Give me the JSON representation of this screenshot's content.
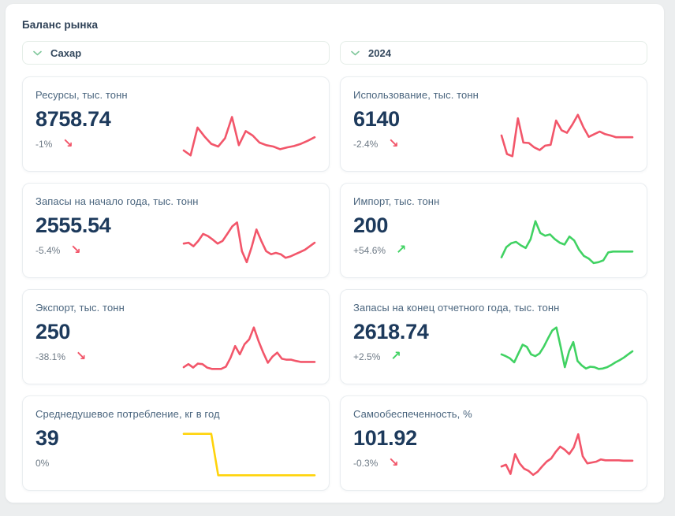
{
  "page": {
    "title": "Баланс рынка"
  },
  "filters": {
    "product": {
      "value": "Сахар"
    },
    "year": {
      "value": "2024"
    }
  },
  "colors": {
    "red": "#f2566a",
    "green": "#41d263",
    "yellow": "#ffd30a",
    "chevron": "#7fc79b",
    "value_text": "#1d3a5c"
  },
  "cards": [
    {
      "title": "Ресурсы, тыс. тонн",
      "value": "8758.74",
      "change": "-1%",
      "arrow": "↘",
      "color": "red",
      "sparkline": [
        0.16,
        0.05,
        0.68,
        0.48,
        0.31,
        0.25,
        0.44,
        0.92,
        0.28,
        0.6,
        0.5,
        0.34,
        0.28,
        0.25,
        0.19,
        0.23,
        0.26,
        0.31,
        0.38,
        0.46
      ]
    },
    {
      "title": "Использование, тыс. тонн",
      "value": "6140",
      "change": "-2.4%",
      "arrow": "↘",
      "color": "red",
      "sparkline": [
        0.5,
        0.08,
        0.03,
        0.89,
        0.34,
        0.33,
        0.23,
        0.17,
        0.27,
        0.29,
        0.84,
        0.62,
        0.56,
        0.75,
        0.97,
        0.69,
        0.47,
        0.53,
        0.59,
        0.53,
        0.5,
        0.46,
        0.46,
        0.46,
        0.46
      ]
    },
    {
      "title": "Запасы на начало года, тыс. тонн",
      "value": "2555.54",
      "change": "-5.4%",
      "arrow": "↘",
      "color": "red",
      "sparkline": [
        0.46,
        0.48,
        0.4,
        0.52,
        0.68,
        0.63,
        0.55,
        0.46,
        0.52,
        0.68,
        0.85,
        0.94,
        0.29,
        0.04,
        0.38,
        0.78,
        0.52,
        0.29,
        0.22,
        0.25,
        0.22,
        0.14,
        0.17,
        0.22,
        0.27,
        0.32,
        0.4,
        0.48
      ]
    },
    {
      "title": "Импорт, тыс. тонн",
      "value": "200",
      "change": "+54.6%",
      "arrow": "↗",
      "color": "green",
      "sparkline": [
        0.15,
        0.38,
        0.47,
        0.5,
        0.42,
        0.36,
        0.56,
        0.97,
        0.7,
        0.64,
        0.67,
        0.56,
        0.48,
        0.44,
        0.62,
        0.53,
        0.32,
        0.18,
        0.12,
        0.02,
        0.04,
        0.08,
        0.26,
        0.28,
        0.28,
        0.28,
        0.28,
        0.28
      ]
    },
    {
      "title": "Экспорт, тыс. тонн",
      "value": "250",
      "change": "-38.1%",
      "arrow": "↘",
      "color": "red",
      "sparkline": [
        0.07,
        0.14,
        0.06,
        0.15,
        0.14,
        0.06,
        0.03,
        0.03,
        0.03,
        0.08,
        0.28,
        0.55,
        0.36,
        0.59,
        0.7,
        0.97,
        0.66,
        0.4,
        0.17,
        0.31,
        0.4,
        0.26,
        0.24,
        0.24,
        0.21,
        0.19,
        0.19,
        0.19,
        0.19
      ]
    },
    {
      "title": "Запасы на конец отчетного года, тыс. тонн",
      "value": "2618.74",
      "change": "+2.5%",
      "arrow": "↗",
      "color": "green",
      "sparkline": [
        0.36,
        0.32,
        0.27,
        0.18,
        0.38,
        0.58,
        0.53,
        0.36,
        0.32,
        0.38,
        0.53,
        0.72,
        0.9,
        0.97,
        0.53,
        0.07,
        0.43,
        0.64,
        0.21,
        0.11,
        0.04,
        0.08,
        0.07,
        0.03,
        0.04,
        0.07,
        0.12,
        0.18,
        0.23,
        0.29,
        0.36,
        0.43
      ]
    },
    {
      "title": "Среднедушевое потребление, кг в год",
      "value": "39",
      "change": "0%",
      "arrow": "",
      "color": "yellow",
      "sparkline": [
        0.97,
        0.97,
        0.97,
        0.97,
        0.97,
        0.03,
        0.03,
        0.03,
        0.03,
        0.03,
        0.03,
        0.03,
        0.03,
        0.03,
        0.03,
        0.03,
        0.03,
        0.03,
        0.03,
        0.03
      ]
    },
    {
      "title": "Самообеспеченность, %",
      "value": "101.92",
      "change": "-0.3%",
      "arrow": "↘",
      "color": "red",
      "sparkline": [
        0.23,
        0.27,
        0.06,
        0.51,
        0.3,
        0.18,
        0.13,
        0.04,
        0.11,
        0.23,
        0.34,
        0.41,
        0.56,
        0.68,
        0.61,
        0.51,
        0.66,
        0.96,
        0.46,
        0.3,
        0.32,
        0.34,
        0.39,
        0.37,
        0.37,
        0.37,
        0.37,
        0.36,
        0.36,
        0.36
      ]
    }
  ]
}
